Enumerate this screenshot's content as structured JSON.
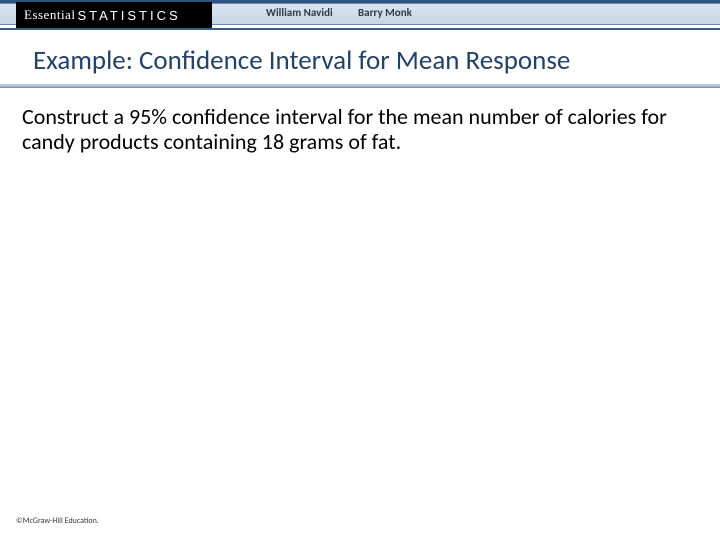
{
  "header": {
    "brand_main": "Essential",
    "brand_sub": "STATISTICS",
    "author1": "William Navidi",
    "author2": "Barry Monk",
    "accent_color": "#2e557f",
    "strip_gradient_top": "#d9e4ef",
    "strip_gradient_bottom": "#c7d6e6"
  },
  "title": {
    "text": "Example: Confidence Interval for Mean Response",
    "color": "#224267",
    "fontsize": 27
  },
  "body": {
    "text": "Construct a 95% confidence interval for the mean number of calories for candy products containing 18 grams of fat.",
    "fontsize": 22,
    "color": "#000000"
  },
  "footer": {
    "copyright": "©McGraw-Hill Education."
  },
  "background_color": "#ffffff"
}
